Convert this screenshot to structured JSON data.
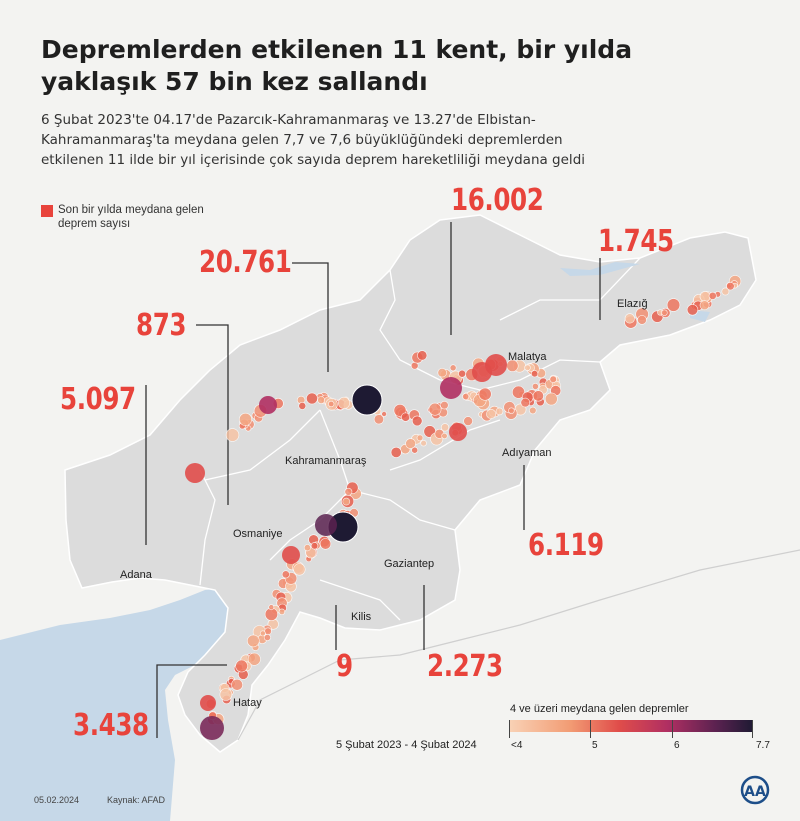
{
  "header": {
    "title": "Depremlerden etkilenen 11 kent, bir yılda yaklaşık 57 bin kez sallandı",
    "subtitle": "6 Şubat 2023'te 04.17'de Pazarcık-Kahramanmaraş ve 13.27'de Elbistan-Kahramanmaraş'ta meydana gelen 7,7 ve 7,6 büyüklüğündeki depremlerden etkilenen 11 ilde bir yıl içerisinde çok sayıda deprem hareketliliği meydana geldi"
  },
  "legend": {
    "label": "Son bir yılda meydana gelen deprem sayısı",
    "color": "#e8433b"
  },
  "counts": [
    {
      "city": "Malatya",
      "value": "16.002"
    },
    {
      "city": "Elazığ",
      "value": "1.745"
    },
    {
      "city": "Kahramanmaraş",
      "value": "20.761"
    },
    {
      "city": "Osmaniye",
      "value": "873"
    },
    {
      "city": "Adana",
      "value": "5.097"
    },
    {
      "city": "Adıyaman",
      "value": "6.119"
    },
    {
      "city": "Gaziantep",
      "value": "2.273"
    },
    {
      "city": "Kilis",
      "value": "9"
    },
    {
      "city": "Hatay",
      "value": "3.438"
    }
  ],
  "city_labels": [
    "Elazığ",
    "Malatya",
    "Adıyaman",
    "Kahramanmaraş",
    "Osmaniye",
    "Adana",
    "Gaziantep",
    "Kilis",
    "Hatay"
  ],
  "magnitude_scale": {
    "title": "4 ve üzeri meydana gelen depremler",
    "ticks": [
      "<4",
      "5",
      "6",
      "7.7"
    ]
  },
  "period": "5 Şubat 2023 - 4 Şubat 2024",
  "footer": {
    "date": "05.02.2024",
    "source": "Kaynak: AFAD"
  },
  "colors": {
    "accent": "#e8433b",
    "region_fill": "#dcdcdc",
    "sea": "#c6d8e8"
  }
}
